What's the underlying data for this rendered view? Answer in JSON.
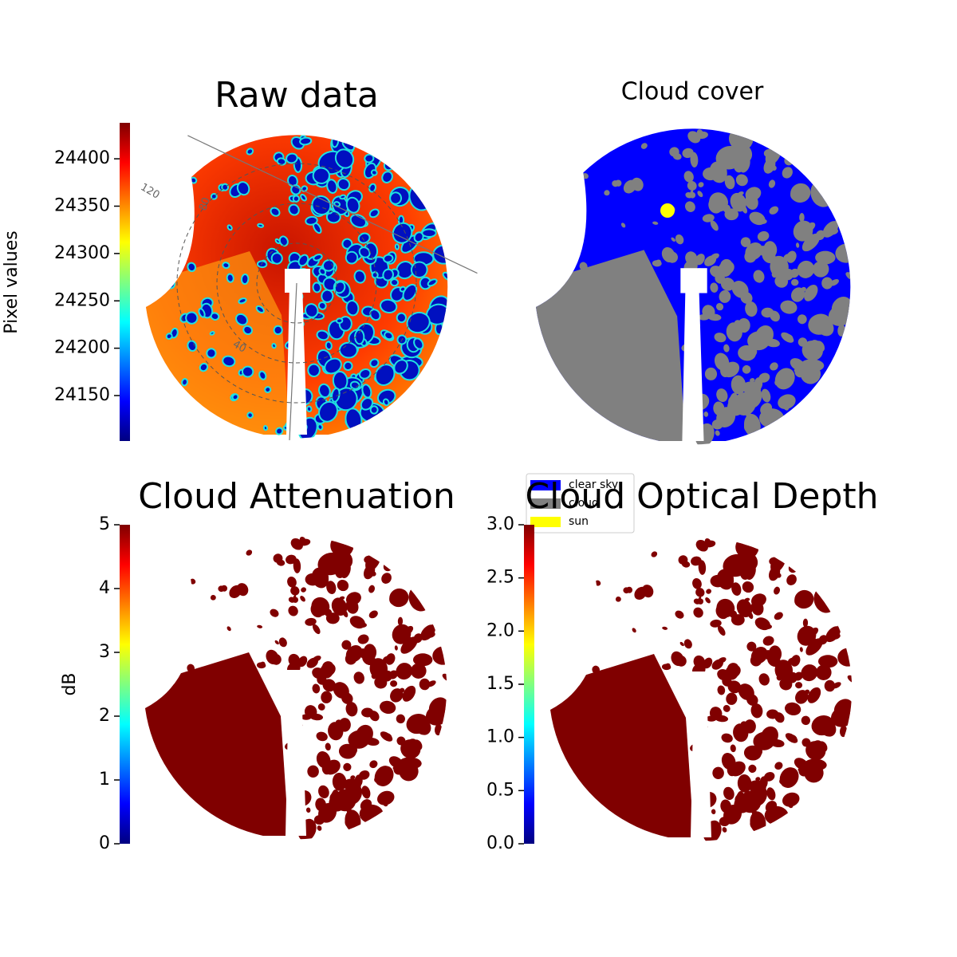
{
  "chart_data": [
    {
      "type": "image",
      "title": "Raw data",
      "colorbar_label": "Pixel values",
      "colormap": "jet",
      "ylim": [
        24102,
        24438
      ],
      "yticks": [
        24150,
        24200,
        24250,
        24300,
        24350,
        24400
      ],
      "polar_labels": [
        "120",
        "80",
        "40"
      ]
    },
    {
      "type": "categorical-image",
      "title": "Cloud cover",
      "legend": [
        {
          "name": "clear sky",
          "color": "#0000ff"
        },
        {
          "name": "cloud",
          "color": "#808080"
        },
        {
          "name": "sun",
          "color": "#ffff00"
        }
      ]
    },
    {
      "type": "image",
      "title": "Cloud Attenuation",
      "colorbar_label": "dB",
      "colormap": "jet",
      "ylim": [
        0,
        5
      ],
      "yticks": [
        0,
        1,
        2,
        3,
        4,
        5
      ]
    },
    {
      "type": "image",
      "title": "Cloud Optical Depth",
      "colormap": "jet",
      "ylim": [
        0,
        3
      ],
      "yticks": [
        {
          "value": 0,
          "label": "0.0"
        },
        {
          "value": 0.5,
          "label": "0.5"
        },
        {
          "value": 1,
          "label": "1.0"
        },
        {
          "value": 1.5,
          "label": "1.5"
        },
        {
          "value": 2,
          "label": "2.0"
        },
        {
          "value": 2.5,
          "label": "2.5"
        },
        {
          "value": 3,
          "label": "3.0"
        }
      ]
    }
  ]
}
